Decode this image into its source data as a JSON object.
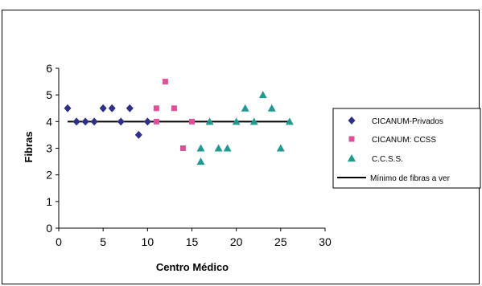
{
  "chart_data": {
    "type": "scatter",
    "title": "",
    "xlabel": "Centro Médico",
    "ylabel": "Fibras",
    "xlim": [
      0,
      30
    ],
    "ylim": [
      0,
      6
    ],
    "xticks": [
      0,
      5,
      10,
      15,
      20,
      25,
      30
    ],
    "yticks": [
      0,
      1,
      2,
      3,
      4,
      5,
      6
    ],
    "grid": false,
    "legend_position": "right",
    "series": [
      {
        "name": "CICANUM-Privados",
        "marker": "diamond",
        "color": "#2e2f86",
        "points": [
          [
            1,
            4.5
          ],
          [
            2,
            4
          ],
          [
            3,
            4
          ],
          [
            4,
            4
          ],
          [
            5,
            4.5
          ],
          [
            6,
            4.5
          ],
          [
            7,
            4
          ],
          [
            8,
            4.5
          ],
          [
            9,
            3.5
          ],
          [
            10,
            4
          ]
        ]
      },
      {
        "name": "CICANUM: CCSS",
        "marker": "square",
        "color": "#e0509a",
        "points": [
          [
            11,
            4.5
          ],
          [
            11,
            4
          ],
          [
            12,
            5.5
          ],
          [
            13,
            4.5
          ],
          [
            14,
            3
          ],
          [
            15,
            4
          ]
        ]
      },
      {
        "name": "C.C.S.S.",
        "marker": "triangle",
        "color": "#1f9a8e",
        "points": [
          [
            16,
            3
          ],
          [
            16,
            2.5
          ],
          [
            17,
            4
          ],
          [
            18,
            3
          ],
          [
            19,
            3
          ],
          [
            20,
            4
          ],
          [
            21,
            4.5
          ],
          [
            22,
            4
          ],
          [
            23,
            5
          ],
          [
            24,
            4.5
          ],
          [
            25,
            3
          ],
          [
            26,
            4
          ]
        ]
      },
      {
        "name": "Mínimo de fibras a ver",
        "type": "line",
        "color": "#000000",
        "points": [
          [
            1,
            4
          ],
          [
            26,
            4
          ]
        ]
      }
    ]
  }
}
